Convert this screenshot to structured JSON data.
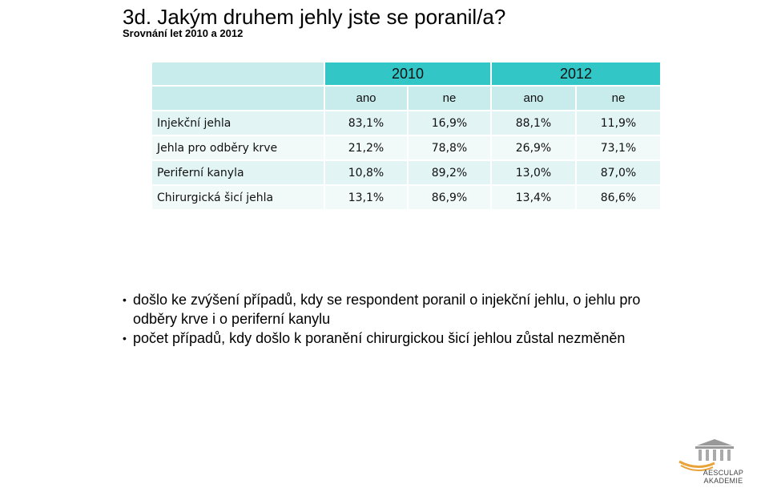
{
  "title": "3d. Jakým druhem jehly jste se poranil/a?",
  "subtitle": "Srovnání let  2010 a 2012",
  "table": {
    "years": [
      "2010",
      "2012"
    ],
    "subheaders": [
      "ano",
      "ne",
      "ano",
      "ne"
    ],
    "rows": [
      {
        "label": "Injekční jehla",
        "values": [
          "83,1%",
          "16,9%",
          "88,1%",
          "11,9%"
        ]
      },
      {
        "label": "Jehla pro odběry krve",
        "values": [
          "21,2%",
          "78,8%",
          "26,9%",
          "73,1%"
        ]
      },
      {
        "label": "Periferní kanyla",
        "values": [
          "10,8%",
          "89,2%",
          "13,0%",
          "87,0%"
        ]
      },
      {
        "label": "Chirurgická šicí jehla",
        "values": [
          "13,1%",
          "86,9%",
          "13,4%",
          "86,6%"
        ]
      }
    ]
  },
  "bullets": [
    "došlo ke zvýšení případů, kdy se respondent poranil o injekční jehlu, o jehlu pro odběry krve i o periferní kanylu",
    "počet případů, kdy došlo k poranění chirurgickou šicí jehlou zůstal nezměněn"
  ],
  "logo": {
    "line1": "AESCULAP",
    "line2": "AKADEMIE",
    "color": "#e8a33a"
  },
  "colors": {
    "header": "#33c6c6",
    "subheader": "#c8ecec",
    "row_a": "#e2f4f4",
    "row_b": "#f1f9f9"
  }
}
